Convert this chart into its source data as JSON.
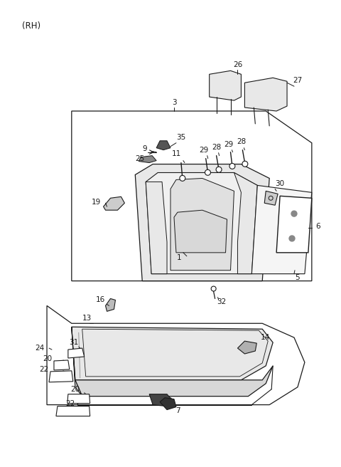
{
  "background_color": "#ffffff",
  "line_color": "#1a1a1a",
  "fig_width": 4.8,
  "fig_height": 6.56,
  "dpi": 100
}
